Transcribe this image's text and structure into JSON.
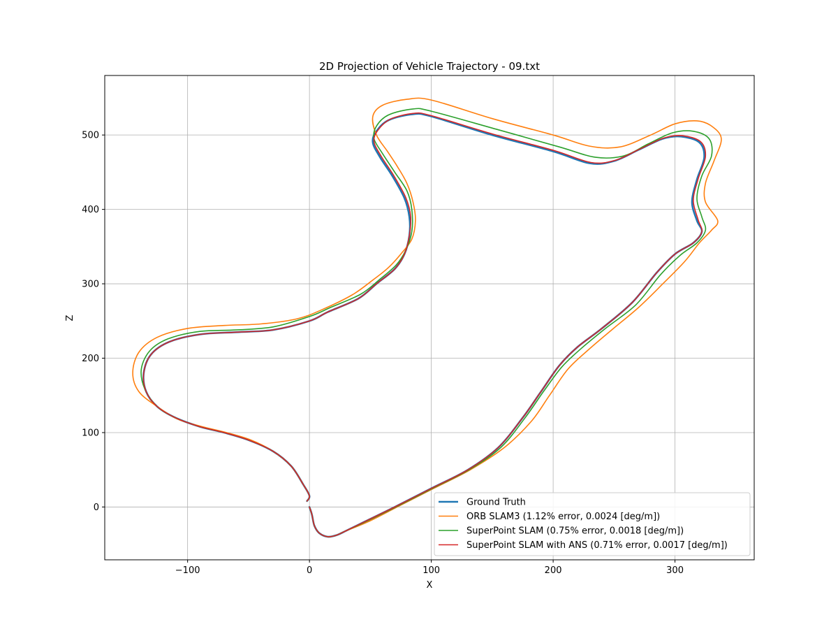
{
  "chart_data": {
    "type": "line",
    "title": "2D Projection of Vehicle Trajectory - 09.txt",
    "xlabel": "X",
    "ylabel": "Z",
    "xlim": [
      -168,
      365
    ],
    "ylim": [
      -71,
      580
    ],
    "xticks": [
      -100,
      0,
      100,
      200,
      300
    ],
    "yticks": [
      0,
      100,
      200,
      300,
      400,
      500
    ],
    "xtick_labels": [
      "−100",
      "0",
      "100",
      "200",
      "300"
    ],
    "ytick_labels": [
      "0",
      "100",
      "200",
      "300",
      "400",
      "500"
    ],
    "grid": true,
    "legend_position": "lower-right",
    "series": [
      {
        "name": "Ground Truth",
        "color": "#1f77b4",
        "points": [
          [
            0,
            0
          ],
          [
            2,
            -10
          ],
          [
            4,
            -25
          ],
          [
            8,
            -35
          ],
          [
            15,
            -40
          ],
          [
            22,
            -38
          ],
          [
            30,
            -32
          ],
          [
            45,
            -20
          ],
          [
            70,
            0
          ],
          [
            100,
            25
          ],
          [
            130,
            50
          ],
          [
            155,
            80
          ],
          [
            175,
            120
          ],
          [
            190,
            155
          ],
          [
            205,
            190
          ],
          [
            220,
            215
          ],
          [
            240,
            240
          ],
          [
            265,
            275
          ],
          [
            285,
            315
          ],
          [
            300,
            340
          ],
          [
            315,
            355
          ],
          [
            322,
            370
          ],
          [
            318,
            385
          ],
          [
            314,
            410
          ],
          [
            318,
            440
          ],
          [
            324,
            470
          ],
          [
            320,
            490
          ],
          [
            305,
            498
          ],
          [
            290,
            495
          ],
          [
            270,
            480
          ],
          [
            250,
            465
          ],
          [
            230,
            462
          ],
          [
            200,
            478
          ],
          [
            150,
            500
          ],
          [
            100,
            525
          ],
          [
            85,
            528
          ],
          [
            65,
            520
          ],
          [
            55,
            505
          ],
          [
            52,
            490
          ],
          [
            58,
            470
          ],
          [
            68,
            445
          ],
          [
            78,
            415
          ],
          [
            82,
            390
          ],
          [
            82,
            365
          ],
          [
            78,
            340
          ],
          [
            70,
            320
          ],
          [
            55,
            300
          ],
          [
            40,
            280
          ],
          [
            15,
            262
          ],
          [
            0,
            250
          ],
          [
            -30,
            238
          ],
          [
            -60,
            235
          ],
          [
            -90,
            232
          ],
          [
            -115,
            222
          ],
          [
            -130,
            205
          ],
          [
            -136,
            180
          ],
          [
            -134,
            155
          ],
          [
            -125,
            135
          ],
          [
            -110,
            120
          ],
          [
            -90,
            108
          ],
          [
            -70,
            100
          ],
          [
            -50,
            90
          ],
          [
            -30,
            75
          ],
          [
            -15,
            55
          ],
          [
            -5,
            30
          ],
          [
            0,
            15
          ],
          [
            -2,
            8
          ]
        ]
      },
      {
        "name": "ORB SLAM3 (1.12% error, 0.0024 [deg/m])",
        "color": "#ff7f0e",
        "points": [
          [
            0,
            0
          ],
          [
            2,
            -10
          ],
          [
            4,
            -25
          ],
          [
            8,
            -35
          ],
          [
            15,
            -40
          ],
          [
            22,
            -38
          ],
          [
            30,
            -32
          ],
          [
            48,
            -20
          ],
          [
            72,
            0
          ],
          [
            102,
            25
          ],
          [
            132,
            50
          ],
          [
            160,
            80
          ],
          [
            182,
            115
          ],
          [
            197,
            150
          ],
          [
            212,
            185
          ],
          [
            228,
            210
          ],
          [
            248,
            238
          ],
          [
            270,
            268
          ],
          [
            290,
            300
          ],
          [
            308,
            330
          ],
          [
            320,
            355
          ],
          [
            330,
            372
          ],
          [
            335,
            385
          ],
          [
            325,
            410
          ],
          [
            325,
            435
          ],
          [
            332,
            465
          ],
          [
            338,
            495
          ],
          [
            330,
            512
          ],
          [
            318,
            519
          ],
          [
            300,
            515
          ],
          [
            280,
            500
          ],
          [
            255,
            484
          ],
          [
            230,
            485
          ],
          [
            200,
            500
          ],
          [
            150,
            522
          ],
          [
            100,
            547
          ],
          [
            80,
            548
          ],
          [
            60,
            540
          ],
          [
            52,
            525
          ],
          [
            55,
            500
          ],
          [
            64,
            478
          ],
          [
            72,
            458
          ],
          [
            80,
            435
          ],
          [
            85,
            410
          ],
          [
            87,
            385
          ],
          [
            84,
            360
          ],
          [
            75,
            340
          ],
          [
            65,
            322
          ],
          [
            52,
            305
          ],
          [
            35,
            285
          ],
          [
            10,
            265
          ],
          [
            -10,
            253
          ],
          [
            -40,
            246
          ],
          [
            -70,
            244
          ],
          [
            -100,
            240
          ],
          [
            -125,
            228
          ],
          [
            -140,
            208
          ],
          [
            -145,
            180
          ],
          [
            -140,
            155
          ],
          [
            -125,
            135
          ],
          [
            -108,
            118
          ],
          [
            -88,
            108
          ],
          [
            -68,
            100
          ],
          [
            -48,
            90
          ],
          [
            -30,
            75
          ],
          [
            -15,
            55
          ],
          [
            -5,
            30
          ],
          [
            0,
            15
          ],
          [
            -2,
            8
          ]
        ]
      },
      {
        "name": "SuperPoint SLAM (0.75% error, 0.0018 [deg/m])",
        "color": "#2ca02c",
        "points": [
          [
            0,
            0
          ],
          [
            2,
            -10
          ],
          [
            4,
            -25
          ],
          [
            8,
            -35
          ],
          [
            15,
            -40
          ],
          [
            22,
            -38
          ],
          [
            30,
            -32
          ],
          [
            46,
            -20
          ],
          [
            71,
            0
          ],
          [
            101,
            25
          ],
          [
            131,
            50
          ],
          [
            157,
            80
          ],
          [
            177,
            120
          ],
          [
            192,
            155
          ],
          [
            207,
            188
          ],
          [
            223,
            213
          ],
          [
            243,
            240
          ],
          [
            268,
            272
          ],
          [
            288,
            312
          ],
          [
            304,
            338
          ],
          [
            318,
            355
          ],
          [
            325,
            372
          ],
          [
            322,
            390
          ],
          [
            318,
            415
          ],
          [
            322,
            445
          ],
          [
            330,
            472
          ],
          [
            328,
            495
          ],
          [
            315,
            505
          ],
          [
            298,
            503
          ],
          [
            278,
            488
          ],
          [
            258,
            472
          ],
          [
            235,
            470
          ],
          [
            205,
            484
          ],
          [
            155,
            507
          ],
          [
            100,
            532
          ],
          [
            85,
            535
          ],
          [
            65,
            527
          ],
          [
            55,
            512
          ],
          [
            53,
            495
          ],
          [
            60,
            475
          ],
          [
            70,
            450
          ],
          [
            80,
            425
          ],
          [
            84,
            400
          ],
          [
            84,
            370
          ],
          [
            79,
            345
          ],
          [
            71,
            325
          ],
          [
            57,
            305
          ],
          [
            42,
            286
          ],
          [
            17,
            268
          ],
          [
            0,
            256
          ],
          [
            -30,
            242
          ],
          [
            -60,
            238
          ],
          [
            -90,
            236
          ],
          [
            -116,
            226
          ],
          [
            -131,
            210
          ],
          [
            -138,
            185
          ],
          [
            -135,
            158
          ],
          [
            -125,
            135
          ],
          [
            -110,
            120
          ],
          [
            -90,
            108
          ],
          [
            -70,
            100
          ],
          [
            -50,
            90
          ],
          [
            -30,
            75
          ],
          [
            -15,
            55
          ],
          [
            -5,
            30
          ],
          [
            0,
            15
          ],
          [
            -2,
            8
          ]
        ]
      },
      {
        "name": "SuperPoint SLAM with ANS (0.71% error, 0.0017 [deg/m])",
        "color": "#d62728",
        "points": [
          [
            0,
            0
          ],
          [
            2,
            -10
          ],
          [
            4,
            -25
          ],
          [
            8,
            -35
          ],
          [
            15,
            -40
          ],
          [
            22,
            -38
          ],
          [
            30,
            -32
          ],
          [
            45,
            -20
          ],
          [
            70,
            0
          ],
          [
            100,
            25
          ],
          [
            130,
            50
          ],
          [
            155,
            80
          ],
          [
            175,
            120
          ],
          [
            190,
            155
          ],
          [
            205,
            190
          ],
          [
            220,
            215
          ],
          [
            240,
            240
          ],
          [
            265,
            275
          ],
          [
            285,
            315
          ],
          [
            300,
            340
          ],
          [
            315,
            355
          ],
          [
            322,
            370
          ],
          [
            319,
            386
          ],
          [
            315,
            412
          ],
          [
            319,
            441
          ],
          [
            325,
            471
          ],
          [
            321,
            491
          ],
          [
            306,
            499
          ],
          [
            291,
            496
          ],
          [
            271,
            481
          ],
          [
            251,
            466
          ],
          [
            231,
            463
          ],
          [
            201,
            479
          ],
          [
            151,
            501
          ],
          [
            100,
            526
          ],
          [
            85,
            529
          ],
          [
            66,
            521
          ],
          [
            56,
            506
          ],
          [
            53,
            491
          ],
          [
            59,
            471
          ],
          [
            69,
            446
          ],
          [
            79,
            416
          ],
          [
            83,
            391
          ],
          [
            82,
            365
          ],
          [
            78,
            340
          ],
          [
            70,
            320
          ],
          [
            55,
            300
          ],
          [
            40,
            280
          ],
          [
            15,
            262
          ],
          [
            0,
            250
          ],
          [
            -30,
            238
          ],
          [
            -60,
            235
          ],
          [
            -90,
            232
          ],
          [
            -115,
            222
          ],
          [
            -130,
            205
          ],
          [
            -136,
            180
          ],
          [
            -134,
            155
          ],
          [
            -125,
            135
          ],
          [
            -110,
            120
          ],
          [
            -90,
            108
          ],
          [
            -70,
            100
          ],
          [
            -50,
            90
          ],
          [
            -30,
            75
          ],
          [
            -15,
            55
          ],
          [
            -5,
            30
          ],
          [
            0,
            15
          ],
          [
            -2,
            8
          ]
        ]
      }
    ]
  }
}
